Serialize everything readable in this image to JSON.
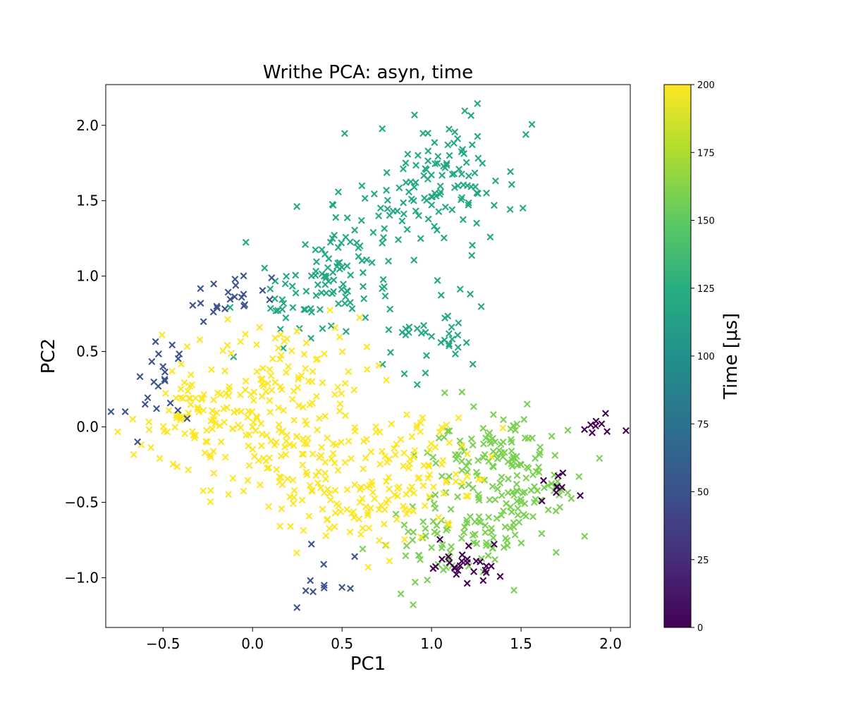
{
  "chart_data": {
    "type": "scatter",
    "title": "Writhe PCA: asyn, time",
    "xlabel": "PC1",
    "ylabel": "PC2",
    "xlim": [
      -0.82,
      2.11
    ],
    "ylim": [
      -1.33,
      2.27
    ],
    "xticks": [
      -0.5,
      0.0,
      0.5,
      1.0,
      1.5,
      2.0
    ],
    "xtick_labels": [
      "−0.5",
      "0.0",
      "0.5",
      "1.0",
      "1.5",
      "2.0"
    ],
    "yticks": [
      -1.0,
      -0.5,
      0.0,
      0.5,
      1.0,
      1.5,
      2.0
    ],
    "ytick_labels": [
      "−1.0",
      "−0.5",
      "0.0",
      "0.5",
      "1.0",
      "1.5",
      "2.0"
    ],
    "marker": "x",
    "grid": false,
    "colorbar": {
      "label": "Time [μs]",
      "colormap": "viridis",
      "range": [
        0,
        200
      ],
      "ticks": [
        0,
        25,
        50,
        75,
        100,
        125,
        150,
        175,
        200
      ],
      "tick_labels": [
        "0",
        "25",
        "50",
        "75",
        "100",
        "125",
        "150",
        "175",
        "200"
      ]
    },
    "clusters": [
      {
        "time": 120,
        "color": "#22a884",
        "description_points": [
          [
            0.6,
            1.2
          ],
          [
            0.9,
            1.5
          ],
          [
            1.1,
            1.8
          ],
          [
            0.4,
            1.0
          ],
          [
            1.2,
            1.6
          ],
          [
            0.3,
            0.9
          ],
          [
            1.0,
            0.6
          ]
        ]
      },
      {
        "time": 155,
        "color": "#7ad151",
        "description_points": [
          [
            1.2,
            -0.3
          ],
          [
            1.4,
            -0.1
          ],
          [
            1.5,
            -0.5
          ],
          [
            1.6,
            -0.3
          ],
          [
            1.0,
            -0.8
          ],
          [
            1.3,
            -0.7
          ]
        ]
      },
      {
        "time": 195,
        "color": "#fde725",
        "description_points": [
          [
            0.0,
            0.0
          ],
          [
            -0.3,
            0.1
          ],
          [
            0.3,
            -0.3
          ],
          [
            0.6,
            -0.5
          ],
          [
            0.2,
            0.4
          ],
          [
            0.9,
            -0.2
          ]
        ]
      },
      {
        "time": 5,
        "color": "#440154",
        "description_points": [
          [
            1.2,
            -0.9
          ],
          [
            1.3,
            -0.95
          ],
          [
            1.1,
            -0.9
          ],
          [
            1.7,
            -0.4
          ],
          [
            1.95,
            0.02
          ]
        ]
      },
      {
        "time": 60,
        "color": "#3b528b",
        "description_points": [
          [
            -0.5,
            0.4
          ],
          [
            -0.6,
            0.15
          ],
          [
            -0.2,
            0.8
          ],
          [
            -0.05,
            0.88
          ],
          [
            0.4,
            -1.05
          ]
        ]
      }
    ]
  }
}
